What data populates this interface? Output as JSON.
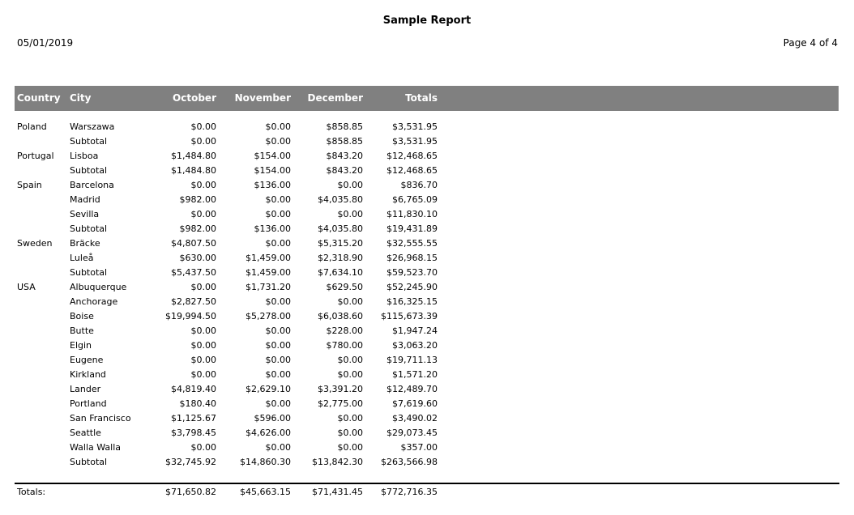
{
  "page": {
    "title": "Sample Report",
    "date": "05/01/2019",
    "page_label": "Page 4 of 4"
  },
  "colors": {
    "header_bg": "#808080",
    "header_text": "#ffffff",
    "body_text": "#000000"
  },
  "table": {
    "columns": {
      "country": "Country",
      "city": "City",
      "october": "October",
      "november": "November",
      "december": "December",
      "totals": "Totals"
    },
    "rows": [
      {
        "country": "Poland",
        "city": "Warszawa",
        "october": "$0.00",
        "november": "$0.00",
        "december": "$858.85",
        "totals": "$3,531.95"
      },
      {
        "country": "",
        "city": "Subtotal",
        "october": "$0.00",
        "november": "$0.00",
        "december": "$858.85",
        "totals": "$3,531.95"
      },
      {
        "country": "Portugal",
        "city": "Lisboa",
        "october": "$1,484.80",
        "november": "$154.00",
        "december": "$843.20",
        "totals": "$12,468.65"
      },
      {
        "country": "",
        "city": "Subtotal",
        "october": "$1,484.80",
        "november": "$154.00",
        "december": "$843.20",
        "totals": "$12,468.65"
      },
      {
        "country": "Spain",
        "city": "Barcelona",
        "october": "$0.00",
        "november": "$136.00",
        "december": "$0.00",
        "totals": "$836.70"
      },
      {
        "country": "",
        "city": "Madrid",
        "october": "$982.00",
        "november": "$0.00",
        "december": "$4,035.80",
        "totals": "$6,765.09"
      },
      {
        "country": "",
        "city": "Sevilla",
        "october": "$0.00",
        "november": "$0.00",
        "december": "$0.00",
        "totals": "$11,830.10"
      },
      {
        "country": "",
        "city": "Subtotal",
        "october": "$982.00",
        "november": "$136.00",
        "december": "$4,035.80",
        "totals": "$19,431.89"
      },
      {
        "country": "Sweden",
        "city": "Bräcke",
        "october": "$4,807.50",
        "november": "$0.00",
        "december": "$5,315.20",
        "totals": "$32,555.55"
      },
      {
        "country": "",
        "city": "Luleå",
        "october": "$630.00",
        "november": "$1,459.00",
        "december": "$2,318.90",
        "totals": "$26,968.15"
      },
      {
        "country": "",
        "city": "Subtotal",
        "october": "$5,437.50",
        "november": "$1,459.00",
        "december": "$7,634.10",
        "totals": "$59,523.70"
      },
      {
        "country": "USA",
        "city": "Albuquerque",
        "october": "$0.00",
        "november": "$1,731.20",
        "december": "$629.50",
        "totals": "$52,245.90"
      },
      {
        "country": "",
        "city": "Anchorage",
        "october": "$2,827.50",
        "november": "$0.00",
        "december": "$0.00",
        "totals": "$16,325.15"
      },
      {
        "country": "",
        "city": "Boise",
        "october": "$19,994.50",
        "november": "$5,278.00",
        "december": "$6,038.60",
        "totals": "$115,673.39"
      },
      {
        "country": "",
        "city": "Butte",
        "october": "$0.00",
        "november": "$0.00",
        "december": "$228.00",
        "totals": "$1,947.24"
      },
      {
        "country": "",
        "city": "Elgin",
        "october": "$0.00",
        "november": "$0.00",
        "december": "$780.00",
        "totals": "$3,063.20"
      },
      {
        "country": "",
        "city": "Eugene",
        "october": "$0.00",
        "november": "$0.00",
        "december": "$0.00",
        "totals": "$19,711.13"
      },
      {
        "country": "",
        "city": "Kirkland",
        "october": "$0.00",
        "november": "$0.00",
        "december": "$0.00",
        "totals": "$1,571.20"
      },
      {
        "country": "",
        "city": "Lander",
        "october": "$4,819.40",
        "november": "$2,629.10",
        "december": "$3,391.20",
        "totals": "$12,489.70"
      },
      {
        "country": "",
        "city": "Portland",
        "october": "$180.40",
        "november": "$0.00",
        "december": "$2,775.00",
        "totals": "$7,619.60"
      },
      {
        "country": "",
        "city": "San Francisco",
        "october": "$1,125.67",
        "november": "$596.00",
        "december": "$0.00",
        "totals": "$3,490.02"
      },
      {
        "country": "",
        "city": "Seattle",
        "october": "$3,798.45",
        "november": "$4,626.00",
        "december": "$0.00",
        "totals": "$29,073.45"
      },
      {
        "country": "",
        "city": "Walla Walla",
        "october": "$0.00",
        "november": "$0.00",
        "december": "$0.00",
        "totals": "$357.00"
      },
      {
        "country": "",
        "city": "Subtotal",
        "october": "$32,745.92",
        "november": "$14,860.30",
        "december": "$13,842.30",
        "totals": "$263,566.98"
      }
    ],
    "footer": {
      "label": "Totals:",
      "october": "$71,650.82",
      "november": "$45,663.15",
      "december": "$71,431.45",
      "totals": "$772,716.35"
    }
  }
}
